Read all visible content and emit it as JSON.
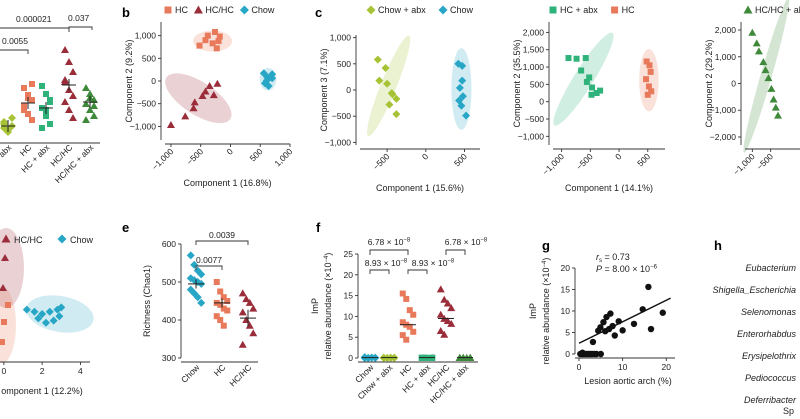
{
  "colors": {
    "green_light": "#a5c334",
    "green": "#2fb37a",
    "salmon": "#e8795a",
    "maroon": "#9b2d3b",
    "teal": "#27a6c6",
    "dkgreen": "#3f8a3a"
  },
  "chart_data": [
    {
      "id": "a",
      "type": "scatter",
      "xticks": [
        "+ abx",
        "HC",
        "HC + abx",
        "HC/HC",
        "HC/HC + abx"
      ],
      "comparisons": [
        "0.0055",
        "0.000021",
        "0.037"
      ]
    },
    {
      "id": "b",
      "type": "scatter",
      "title": "b",
      "legend": [
        "HC",
        "HC/HC",
        "Chow"
      ],
      "xlabel": "Component 1 (16.8%)",
      "ylabel": "Component 2 (9.2%)",
      "xlim": [
        -1100,
        1000
      ],
      "ylim": [
        -1300,
        1300
      ],
      "xticks": [
        "−1,000",
        "−500",
        "0",
        "500",
        "1,000"
      ],
      "xtick_values": [
        -1000,
        -500,
        0,
        500,
        1000
      ],
      "yticks": [
        "1,000",
        "500",
        "0",
        "−500",
        "−1,000"
      ],
      "ytick_values": [
        1000,
        500,
        0,
        -500,
        -1000
      ],
      "series": [
        {
          "name": "HC",
          "shape": "square",
          "color": "salmon",
          "points": [
            [
              -380,
              1000
            ],
            [
              -260,
              1080
            ],
            [
              -180,
              980
            ],
            [
              -420,
              900
            ],
            [
              -300,
              830
            ],
            [
              -200,
              880
            ],
            [
              -520,
              780
            ],
            [
              -230,
              720
            ]
          ]
        },
        {
          "name": "HC/HC",
          "shape": "triangle",
          "color": "maroon",
          "points": [
            [
              -1000,
              -970
            ],
            [
              -760,
              -780
            ],
            [
              -600,
              -470
            ],
            [
              -470,
              -330
            ],
            [
              -350,
              -110
            ],
            [
              -280,
              -310
            ],
            [
              -220,
              -60
            ],
            [
              -420,
              -230
            ],
            [
              -620,
              -600
            ]
          ]
        },
        {
          "name": "Chow",
          "shape": "diamond",
          "color": "teal",
          "points": [
            [
              560,
              170
            ],
            [
              620,
              80
            ],
            [
              700,
              60
            ],
            [
              580,
              -50
            ],
            [
              640,
              -110
            ],
            [
              700,
              150
            ],
            [
              610,
              10
            ]
          ]
        }
      ],
      "ellipses": [
        {
          "color": "salmon",
          "cx": -300,
          "cy": 880,
          "rx": 330,
          "ry": 230,
          "angle": 0
        },
        {
          "color": "maroon",
          "cx": -540,
          "cy": -380,
          "rx": 640,
          "ry": 360,
          "angle": -33
        },
        {
          "color": "teal",
          "cx": 630,
          "cy": 40,
          "rx": 140,
          "ry": 250,
          "angle": 0
        }
      ]
    },
    {
      "id": "c1",
      "type": "scatter",
      "title": "c",
      "legend": [
        "Chow + abx",
        "Chow"
      ],
      "xlabel": "Component 1 (15.6%)",
      "ylabel": "Component 3 (7.1%)",
      "xlim": [
        -850,
        700
      ],
      "ylim": [
        -1050,
        1050
      ],
      "xticks": [
        "−500",
        "0",
        "500"
      ],
      "xtick_values": [
        -500,
        0,
        500
      ],
      "yticks": [
        "1,000",
        "500",
        "0",
        "−500",
        "−1,000"
      ],
      "ytick_values": [
        1000,
        500,
        0,
        -500,
        -1000
      ],
      "series": [
        {
          "name": "Chow + abx",
          "shape": "diamond",
          "color": "green_light",
          "points": [
            [
              -620,
              580
            ],
            [
              -520,
              420
            ],
            [
              -600,
              180
            ],
            [
              -500,
              120
            ],
            [
              -440,
              -60
            ],
            [
              -380,
              -170
            ],
            [
              -470,
              -280
            ],
            [
              -380,
              -460
            ],
            [
              -430,
              -80
            ]
          ]
        },
        {
          "name": "Chow",
          "shape": "diamond",
          "color": "teal",
          "points": [
            [
              420,
              500
            ],
            [
              470,
              460
            ],
            [
              470,
              180
            ],
            [
              440,
              40
            ],
            [
              480,
              -120
            ],
            [
              430,
              -200
            ],
            [
              460,
              -300
            ],
            [
              520,
              -490
            ]
          ]
        }
      ],
      "ellipses": [
        {
          "color": "green_light",
          "cx": -480,
          "cy": 80,
          "rx": 700,
          "ry": 150,
          "angle": 68
        },
        {
          "color": "teal",
          "cx": 460,
          "cy": 20,
          "rx": 130,
          "ry": 780,
          "angle": 0
        }
      ]
    },
    {
      "id": "c2",
      "type": "scatter",
      "legend": [
        "HC + abx",
        "HC"
      ],
      "xlabel": "Component 1 (14.1%)",
      "ylabel": "Component 2 (35.5%)",
      "xlim": [
        -1150,
        800
      ],
      "ylim": [
        -1250,
        2300
      ],
      "xticks": [
        "−1,000",
        "−500",
        "0",
        "500"
      ],
      "xtick_values": [
        -1000,
        -500,
        0,
        500
      ],
      "yticks": [
        "2,000",
        "1,500",
        "1,000",
        "500",
        "0",
        "−500",
        "−1,000"
      ],
      "ytick_values": [
        2000,
        1500,
        1000,
        500,
        0,
        -500,
        -1000
      ],
      "series": [
        {
          "name": "HC + abx",
          "shape": "square",
          "color": "green",
          "points": [
            [
              -880,
              1260
            ],
            [
              -740,
              1240
            ],
            [
              -580,
              1260
            ],
            [
              -660,
              900
            ],
            [
              -520,
              700
            ],
            [
              -470,
              410
            ],
            [
              -390,
              250
            ],
            [
              -330,
              320
            ],
            [
              -480,
              200
            ],
            [
              -560,
              570
            ]
          ]
        },
        {
          "name": "HC",
          "shape": "square",
          "color": "salmon",
          "points": [
            [
              480,
              1160
            ],
            [
              530,
              1050
            ],
            [
              470,
              650
            ],
            [
              520,
              440
            ],
            [
              560,
              300
            ],
            [
              500,
              200
            ],
            [
              550,
              860
            ]
          ]
        }
      ],
      "ellipses": [
        {
          "color": "green",
          "cx": -620,
          "cy": 650,
          "rx": 950,
          "ry": 280,
          "angle": 58
        },
        {
          "color": "salmon",
          "cx": 520,
          "cy": 620,
          "rx": 170,
          "ry": 900,
          "angle": 0
        }
      ]
    },
    {
      "id": "c3",
      "type": "scatter",
      "legend": [
        "HC/HC + abx"
      ],
      "ylabel": "Component 2 (29.2%)",
      "xlim": [
        -1200,
        300
      ],
      "ylim": [
        -2300,
        2300
      ],
      "xticks": [
        "−1,000",
        "−500"
      ],
      "xtick_values": [
        -1000,
        -500
      ],
      "yticks": [
        "2,000",
        "1,000",
        "0",
        "−1,000",
        "−2,000"
      ],
      "ytick_values": [
        2000,
        1000,
        0,
        -1000,
        -2000
      ],
      "series": [
        {
          "name": "HC/HC + abx",
          "shape": "triangle",
          "color": "dkgreen",
          "points": [
            [
              -1000,
              1900
            ],
            [
              -880,
              1500
            ],
            [
              -820,
              1200
            ],
            [
              -700,
              800
            ],
            [
              -640,
              500
            ],
            [
              -560,
              200
            ],
            [
              -480,
              -200
            ],
            [
              -420,
              -600
            ],
            [
              -360,
              -900
            ],
            [
              -300,
              -1200
            ]
          ]
        }
      ],
      "ellipses": [
        {
          "color": "dkgreen",
          "cx": -620,
          "cy": 300,
          "rx": 2200,
          "ry": 210,
          "angle": 74
        }
      ]
    },
    {
      "id": "d",
      "type": "scatter",
      "legend": [
        "HC/HC",
        "Chow"
      ],
      "xlabel": "omponent 1 (12.2%)",
      "xlim": [
        -0.2,
        4.5
      ],
      "xticks": [
        "0",
        "2",
        "4"
      ],
      "xtick_values": [
        0,
        2,
        4
      ],
      "series": [
        {
          "name": "Chow",
          "shape": "diamond",
          "color": "teal",
          "points": [
            [
              1.2,
              0.2
            ],
            [
              1.6,
              0.1
            ],
            [
              2.0,
              0.0
            ],
            [
              2.4,
              0.1
            ],
            [
              2.8,
              0.2
            ],
            [
              1.8,
              -0.2
            ],
            [
              2.2,
              -0.4
            ],
            [
              2.6,
              -0.3
            ],
            [
              3.0,
              0.3
            ],
            [
              2.9,
              -0.1
            ]
          ]
        }
      ]
    },
    {
      "id": "e",
      "type": "scatter",
      "title": "e",
      "ylabel": "Richness (Chao1)",
      "ylim": [
        300,
        600
      ],
      "yticks": [
        "600",
        "500",
        "400",
        "300"
      ],
      "ytick_values": [
        600,
        500,
        400,
        300
      ],
      "xticks": [
        "Chow",
        "HC",
        "HC/HC"
      ],
      "comparisons": [
        "0.0039",
        "0.0077"
      ],
      "series": [
        {
          "name": "Chow",
          "shape": "diamond",
          "color": "teal",
          "mean": 495,
          "sem": 12,
          "values": [
            570,
            545,
            530,
            520,
            510,
            505,
            500,
            495,
            480,
            470,
            460,
            445
          ]
        },
        {
          "name": "HC",
          "shape": "square",
          "color": "salmon",
          "mean": 445,
          "sem": 12,
          "values": [
            500,
            475,
            460,
            450,
            445,
            440,
            430,
            425,
            410,
            400,
            385
          ]
        },
        {
          "name": "HC/HC",
          "shape": "triangle",
          "color": "maroon",
          "mean": 405,
          "sem": 22,
          "values": [
            470,
            455,
            445,
            430,
            420,
            400,
            385,
            365,
            335
          ]
        }
      ]
    },
    {
      "id": "f",
      "type": "scatter",
      "title": "f",
      "ylabel": "ImP",
      "ylabel2": "relative abundance (×10",
      "ylabel_exp": "−4",
      "ylim": [
        0,
        25
      ],
      "yticks": [
        "25",
        "20",
        "15",
        "10",
        "5",
        "0"
      ],
      "ytick_values": [
        25,
        20,
        15,
        10,
        5,
        0
      ],
      "xticks": [
        "Chow",
        "Chow + abx",
        "HC",
        "HC + abx",
        "HC/HC",
        "HC/HC + abx"
      ],
      "comparisons": [
        "6.78 × 10",
        "8.93 × 10",
        "8.93 × 10",
        "6.78 × 10"
      ],
      "comparison_exps": [
        "−8",
        "−8",
        "−8",
        "−8"
      ],
      "series": [
        {
          "name": "Chow",
          "shape": "diamond",
          "color": "teal",
          "mean": 0.1,
          "values": [
            0,
            0,
            0.1,
            0.1,
            0,
            0,
            0.1,
            0,
            0.2,
            0
          ]
        },
        {
          "name": "Chow + abx",
          "shape": "diamond",
          "color": "green_light",
          "mean": 0.1,
          "values": [
            0,
            0,
            0.1,
            0,
            0.1,
            0,
            0,
            0.1
          ]
        },
        {
          "name": "HC",
          "shape": "square",
          "color": "salmon",
          "mean": 8.0,
          "values": [
            15.5,
            14.2,
            11.5,
            10.4,
            8.6,
            8.0,
            7.5,
            6.3,
            5.5,
            4.4
          ]
        },
        {
          "name": "HC + abx",
          "shape": "square",
          "color": "green",
          "mean": 0.1,
          "values": [
            0,
            0.1,
            0,
            0,
            0.1,
            0,
            0,
            0.1
          ]
        },
        {
          "name": "HC/HC",
          "shape": "triangle",
          "color": "maroon",
          "mean": 9.5,
          "values": [
            16.5,
            14.0,
            13.1,
            12.0,
            10.4,
            9.4,
            8.9,
            8.2,
            6.5,
            5.6
          ]
        },
        {
          "name": "HC/HC + abx",
          "shape": "triangle",
          "color": "dkgreen",
          "mean": 0.1,
          "values": [
            0,
            0.1,
            0,
            0,
            0.1,
            0,
            0,
            0.1,
            0
          ]
        }
      ]
    },
    {
      "id": "g",
      "type": "scatter",
      "title": "g",
      "xlabel": "Lesion aortic arch (%)",
      "ylabel": "ImP",
      "ylabel2": "relative abundance (×10",
      "ylabel_exp": "−4",
      "xlim": [
        0,
        22
      ],
      "ylim": [
        0,
        20
      ],
      "xticks": [
        "0",
        "10",
        "20"
      ],
      "xtick_values": [
        0,
        10,
        20
      ],
      "yticks": [
        "20",
        "15",
        "10",
        "5",
        "0"
      ],
      "ytick_values": [
        20,
        15,
        10,
        5,
        0
      ],
      "stats": {
        "r_label": "r",
        "r_sub": "s",
        "r_value": " = 0.73",
        "p_label": "P",
        "p_value": " = 8.00 × 10",
        "p_exp": "−6"
      },
      "fit": {
        "x": [
          0,
          21
        ],
        "y": [
          2.5,
          13.0
        ]
      },
      "points": [
        [
          0.3,
          0
        ],
        [
          0.7,
          0
        ],
        [
          1.0,
          0
        ],
        [
          1.4,
          0
        ],
        [
          1.8,
          0
        ],
        [
          2.2,
          0
        ],
        [
          2.6,
          0
        ],
        [
          3.0,
          0
        ],
        [
          3.5,
          0
        ],
        [
          4.0,
          0
        ],
        [
          5.0,
          0
        ],
        [
          0.8,
          0.3
        ],
        [
          3.2,
          2.8
        ],
        [
          4.4,
          5.4
        ],
        [
          4.9,
          6.2
        ],
        [
          5.6,
          7.4
        ],
        [
          6.0,
          5.3
        ],
        [
          6.3,
          8.6
        ],
        [
          6.9,
          5.8
        ],
        [
          7.2,
          9.4
        ],
        [
          7.7,
          6.5
        ],
        [
          8.2,
          4.3
        ],
        [
          9.1,
          7.6
        ],
        [
          10.0,
          5.5
        ],
        [
          12.6,
          7.0
        ],
        [
          14.6,
          10.4
        ],
        [
          15.9,
          15.6
        ],
        [
          16.5,
          5.8
        ],
        [
          19.2,
          9.6
        ]
      ]
    }
  ],
  "taxa": {
    "title": "h",
    "items": [
      "Eubacterium",
      "Shigella_Escherichia",
      "Selenomonas",
      "Enterorhabdus",
      "Erysipelothrix",
      "Pediococcus",
      "Deferribacter"
    ],
    "footer": "Sp"
  }
}
